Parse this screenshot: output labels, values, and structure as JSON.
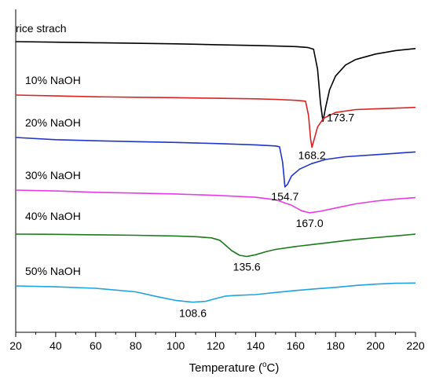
{
  "chart_data": {
    "type": "line",
    "title": "",
    "xlabel": "Temperature (°C)",
    "xlabel_main": "Temperature (",
    "xlabel_sup": "o",
    "xlabel_tail": "C)",
    "ylabel": "",
    "xlim": [
      20,
      220
    ],
    "x_ticks": [
      "20",
      "40",
      "60",
      "80",
      "100",
      "120",
      "140",
      "160",
      "180",
      "200",
      "220"
    ],
    "y_ticks": [],
    "grid": false,
    "series": [
      {
        "name": "rice strach",
        "color": "#000000",
        "peak_label": "173.7",
        "x": [
          20,
          40,
          60,
          80,
          100,
          120,
          140,
          150,
          160,
          166,
          169,
          171,
          172.5,
          173.7,
          175,
          177,
          180,
          185,
          190,
          200,
          210,
          220
        ],
        "y": [
          0,
          -0.4,
          -0.8,
          -1.2,
          -1.6,
          -2.2,
          -2.8,
          -3.2,
          -3.6,
          -4.2,
          -5.5,
          -20,
          -45,
          -58,
          -48,
          -35,
          -25,
          -17,
          -13,
          -9,
          -6.5,
          -5
        ]
      },
      {
        "name": "10% NaOH",
        "color": "#dd2222",
        "peak_label": "168.2",
        "x": [
          20,
          40,
          60,
          80,
          100,
          120,
          140,
          150,
          160,
          165,
          166.5,
          167.5,
          168.2,
          169,
          171,
          174,
          180,
          190,
          200,
          210,
          220
        ],
        "y": [
          0,
          -0.6,
          -1.2,
          -1.5,
          -1.8,
          -2.2,
          -2.6,
          -3,
          -3.6,
          -4.2,
          -14,
          -30,
          -36,
          -32,
          -22,
          -16,
          -12,
          -10,
          -9.5,
          -9,
          -8.5
        ]
      },
      {
        "name": "20% NaOH",
        "color": "#1f35cc",
        "peak_label": "154.7",
        "x": [
          20,
          40,
          60,
          80,
          100,
          120,
          140,
          150,
          152,
          153.5,
          154.7,
          156,
          158,
          162,
          168,
          175,
          185,
          200,
          220
        ],
        "y": [
          0,
          -1.6,
          -2.4,
          -3,
          -3.6,
          -4.4,
          -5.4,
          -6.2,
          -6.8,
          -18,
          -36,
          -34,
          -28,
          -23,
          -19,
          -16,
          -14,
          -12.5,
          -10.5
        ]
      },
      {
        "name": "30% NaOH",
        "color": "#e63be6",
        "peak_label": "167.0",
        "x": [
          20,
          40,
          60,
          80,
          100,
          120,
          140,
          150,
          158,
          163,
          167,
          172,
          180,
          190,
          200,
          210,
          220
        ],
        "y": [
          0,
          -0.6,
          -1.6,
          -2.2,
          -2.8,
          -3.8,
          -5.2,
          -7,
          -11,
          -15,
          -16.5,
          -15.5,
          -13,
          -10,
          -8,
          -6.5,
          -5.5
        ]
      },
      {
        "name": "40% NaOH",
        "color": "#1b7a1b",
        "peak_label": "135.6",
        "x": [
          20,
          40,
          60,
          80,
          100,
          110,
          118,
          122,
          124,
          128,
          132,
          135.6,
          140,
          145,
          150,
          160,
          170,
          180,
          190,
          200,
          210,
          220
        ],
        "y": [
          0,
          -0.2,
          -0.6,
          -1,
          -1.6,
          -2.2,
          -3.2,
          -5.2,
          -8,
          -14,
          -18,
          -19,
          -17.5,
          -15,
          -13,
          -10.5,
          -8.5,
          -6.5,
          -4.5,
          -3,
          -1.5,
          0
        ]
      },
      {
        "name": "50% NaOH",
        "color": "#1ea3de",
        "peak_label": "108.6",
        "x": [
          20,
          40,
          60,
          80,
          90,
          100,
          108.6,
          115,
          120,
          125,
          130,
          140,
          150,
          160,
          170,
          180,
          190,
          200,
          210,
          220
        ],
        "y": [
          0,
          -1,
          -2.6,
          -6.5,
          -11.5,
          -16,
          -18,
          -17,
          -14,
          -11.2,
          -10.5,
          -9.6,
          -7.2,
          -5,
          -3.2,
          -1.6,
          0.5,
          2,
          3,
          3.2
        ]
      }
    ]
  }
}
